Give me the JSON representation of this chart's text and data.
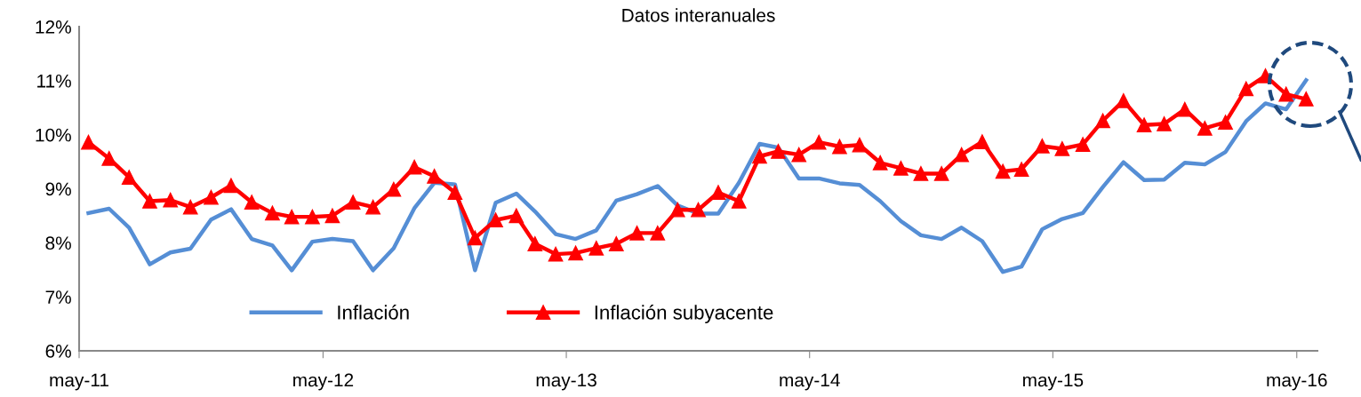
{
  "chart_data": {
    "type": "line",
    "title": "Datos interanuales",
    "x": [
      "2011-05-15",
      "2011-06-15",
      "2011-07-15",
      "2011-08-15",
      "2011-09-15",
      "2011-10-15",
      "2011-11-15",
      "2011-12-15",
      "2012-01-15",
      "2012-02-15",
      "2012-03-15",
      "2012-04-15",
      "2012-05-15",
      "2012-06-15",
      "2012-07-15",
      "2012-08-15",
      "2012-09-15",
      "2012-10-15",
      "2012-11-15",
      "2012-12-15",
      "2013-01-15",
      "2013-02-15",
      "2013-03-15",
      "2013-04-15",
      "2013-05-15",
      "2013-06-15",
      "2013-07-15",
      "2013-08-15",
      "2013-09-15",
      "2013-10-15",
      "2013-11-15",
      "2013-12-15",
      "2014-01-15",
      "2014-02-15",
      "2014-03-15",
      "2014-04-15",
      "2014-05-15",
      "2014-06-15",
      "2014-07-15",
      "2014-08-15",
      "2014-09-15",
      "2014-10-15",
      "2014-11-15",
      "2014-12-15",
      "2015-01-15",
      "2015-02-15",
      "2015-03-15",
      "2015-04-15",
      "2015-05-15",
      "2015-06-15",
      "2015-07-15",
      "2015-08-15",
      "2015-09-15",
      "2015-10-15",
      "2015-11-15",
      "2015-12-15",
      "2016-01-15",
      "2016-02-15",
      "2016-03-15",
      "2016-04-15",
      "2016-05-15"
    ],
    "series": [
      {
        "name": "Inflación",
        "color": "#558ed5",
        "marker": "none",
        "values": [
          8.55,
          8.63,
          8.28,
          7.6,
          7.82,
          7.89,
          8.43,
          8.62,
          8.07,
          7.95,
          7.49,
          8.02,
          8.07,
          8.03,
          7.49,
          7.9,
          8.64,
          9.11,
          9.08,
          7.49,
          8.74,
          8.91,
          8.58,
          8.16,
          8.07,
          8.23,
          8.78,
          8.9,
          9.05,
          8.69,
          8.54,
          8.54,
          9.11,
          9.83,
          9.76,
          9.19,
          9.19,
          9.1,
          9.07,
          8.77,
          8.4,
          8.14,
          8.07,
          8.28,
          8.03,
          7.46,
          7.56,
          8.25,
          8.44,
          8.55,
          9.03,
          9.49,
          9.16,
          9.17,
          9.48,
          9.45,
          9.68,
          10.25,
          10.58,
          10.47,
          11.01
        ]
      },
      {
        "name": "Inflación subyacente",
        "color": "#ff0000",
        "marker": "triangle",
        "values": [
          9.86,
          9.56,
          9.21,
          8.77,
          8.79,
          8.66,
          8.84,
          9.06,
          8.75,
          8.55,
          8.48,
          8.48,
          8.5,
          8.75,
          8.66,
          8.99,
          9.4,
          9.23,
          8.93,
          8.09,
          8.42,
          8.5,
          7.98,
          7.79,
          7.81,
          7.9,
          7.98,
          8.18,
          8.18,
          8.61,
          8.61,
          8.93,
          8.77,
          9.6,
          9.69,
          9.63,
          9.86,
          9.78,
          9.81,
          9.48,
          9.38,
          9.28,
          9.28,
          9.63,
          9.87,
          9.32,
          9.36,
          9.79,
          9.74,
          9.82,
          10.26,
          10.63,
          10.18,
          10.2,
          10.47,
          10.12,
          10.23,
          10.85,
          11.09,
          10.75,
          10.66
        ]
      }
    ],
    "xlim": [
      "2011-05-01",
      "2016-06-01"
    ],
    "xticks": [
      {
        "value": "2011-05-01",
        "label": "may-11"
      },
      {
        "value": "2012-05-01",
        "label": "may-12"
      },
      {
        "value": "2013-05-01",
        "label": "may-13"
      },
      {
        "value": "2014-05-01",
        "label": "may-14"
      },
      {
        "value": "2015-05-01",
        "label": "may-15"
      },
      {
        "value": "2016-05-01",
        "label": "may-16"
      }
    ],
    "ylim": [
      6,
      12
    ],
    "yticks": [
      {
        "value": 6,
        "label": "6%"
      },
      {
        "value": 7,
        "label": "7%"
      },
      {
        "value": 8,
        "label": "8%"
      },
      {
        "value": 9,
        "label": "9%"
      },
      {
        "value": 10,
        "label": "10%"
      },
      {
        "value": 11,
        "label": "11%"
      },
      {
        "value": 12,
        "label": "12%"
      }
    ],
    "grid": false,
    "legend": "bottom"
  }
}
